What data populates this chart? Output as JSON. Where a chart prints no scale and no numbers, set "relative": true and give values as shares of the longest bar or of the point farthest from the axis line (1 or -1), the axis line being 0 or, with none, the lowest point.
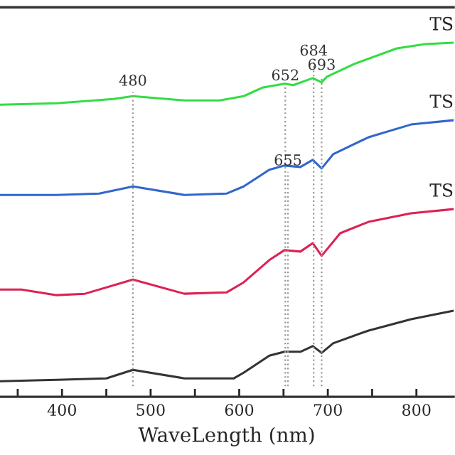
{
  "chart_data": {
    "type": "line",
    "relative": true,
    "xlabel": "WaveLength (nm)",
    "xlim": [
      330,
      842
    ],
    "xticks": [
      {
        "value": 350,
        "label": null
      },
      400,
      {
        "value": 450,
        "label": null
      },
      500,
      {
        "value": 550,
        "label": null
      },
      600,
      {
        "value": 650,
        "label": null
      },
      700,
      {
        "value": 750,
        "label": null
      },
      800
    ],
    "tick_labels": "x",
    "grid": false,
    "legend": false,
    "marker": "none",
    "line_style": "solid",
    "series": [
      {
        "name": "TS",
        "color": "#33dd44",
        "x": [
          330,
          394,
          458,
          480,
          538,
          578,
          605,
          626,
          651,
          661,
          683,
          693,
          699,
          730,
          778,
          810,
          842
        ],
        "values": [
          0.825,
          0.829,
          0.841,
          0.849,
          0.837,
          0.837,
          0.849,
          0.873,
          0.884,
          0.88,
          0.9,
          0.888,
          0.904,
          0.94,
          0.984,
          0.996,
          1.0
        ]
      },
      {
        "name": "TS",
        "color": "#3366cc",
        "x": [
          330,
          394,
          442,
          480,
          538,
          586,
          605,
          634,
          651,
          669,
          683,
          693,
          706,
          746,
          794,
          842
        ],
        "values": [
          0.57,
          0.57,
          0.574,
          0.594,
          0.57,
          0.574,
          0.594,
          0.641,
          0.653,
          0.649,
          0.669,
          0.645,
          0.685,
          0.733,
          0.769,
          0.781
        ]
      },
      {
        "name": "TS",
        "color": "#dd2255",
        "x": [
          330,
          354,
          394,
          426,
          480,
          538,
          586,
          605,
          634,
          651,
          669,
          683,
          693,
          714,
          746,
          794,
          842
        ],
        "values": [
          0.303,
          0.303,
          0.287,
          0.291,
          0.331,
          0.291,
          0.295,
          0.323,
          0.386,
          0.414,
          0.41,
          0.434,
          0.398,
          0.462,
          0.494,
          0.518,
          0.53
        ]
      },
      {
        "color": "#333333",
        "x": [
          330,
          394,
          450,
          480,
          538,
          594,
          605,
          634,
          651,
          669,
          683,
          693,
          706,
          746,
          794,
          842
        ],
        "values": [
          0.044,
          0.048,
          0.052,
          0.076,
          0.052,
          0.052,
          0.068,
          0.116,
          0.127,
          0.127,
          0.143,
          0.124,
          0.151,
          0.187,
          0.219,
          0.243
        ]
      }
    ],
    "ref_lines": [
      {
        "axis": "x",
        "value": 480,
        "label": "480",
        "color": "#999999",
        "line_style": "dotted"
      },
      {
        "axis": "x",
        "value": 652,
        "label": "652",
        "color": "#999999",
        "line_style": "dotted"
      },
      {
        "axis": "x",
        "value": 655,
        "label": "655",
        "color": "#999999",
        "line_style": "dotted"
      },
      {
        "axis": "x",
        "value": 684,
        "label": "684",
        "color": "#999999",
        "line_style": "dotted"
      },
      {
        "axis": "x",
        "value": 693,
        "label": "693",
        "color": "#999999",
        "line_style": "dotted"
      }
    ]
  }
}
